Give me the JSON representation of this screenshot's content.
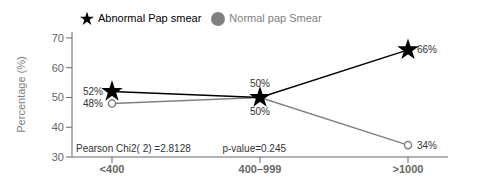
{
  "chart_data": {
    "type": "line",
    "categories": [
      "<400",
      "400–999",
      ">1000"
    ],
    "series": [
      {
        "name": "Normal pap Smear",
        "color": "#808080",
        "marker": "circle",
        "values": [
          48,
          50,
          34
        ],
        "value_labels": [
          "48%",
          "50%",
          "34%"
        ]
      },
      {
        "name": "Abnormal Pap smear",
        "color": "#000000",
        "marker": "star",
        "values": [
          52,
          50,
          66
        ],
        "value_labels": [
          "52%",
          "50%",
          "66%"
        ]
      }
    ],
    "ylabel": "Percentage (%)",
    "ylim": [
      30,
      72
    ],
    "yticks": [
      30,
      40,
      50,
      60,
      70
    ],
    "annotations": [
      "Pearson Chi2( 2) =2.8128",
      "p-value=0.245"
    ],
    "legend": "upper left",
    "data_labels": true,
    "grid": false
  }
}
